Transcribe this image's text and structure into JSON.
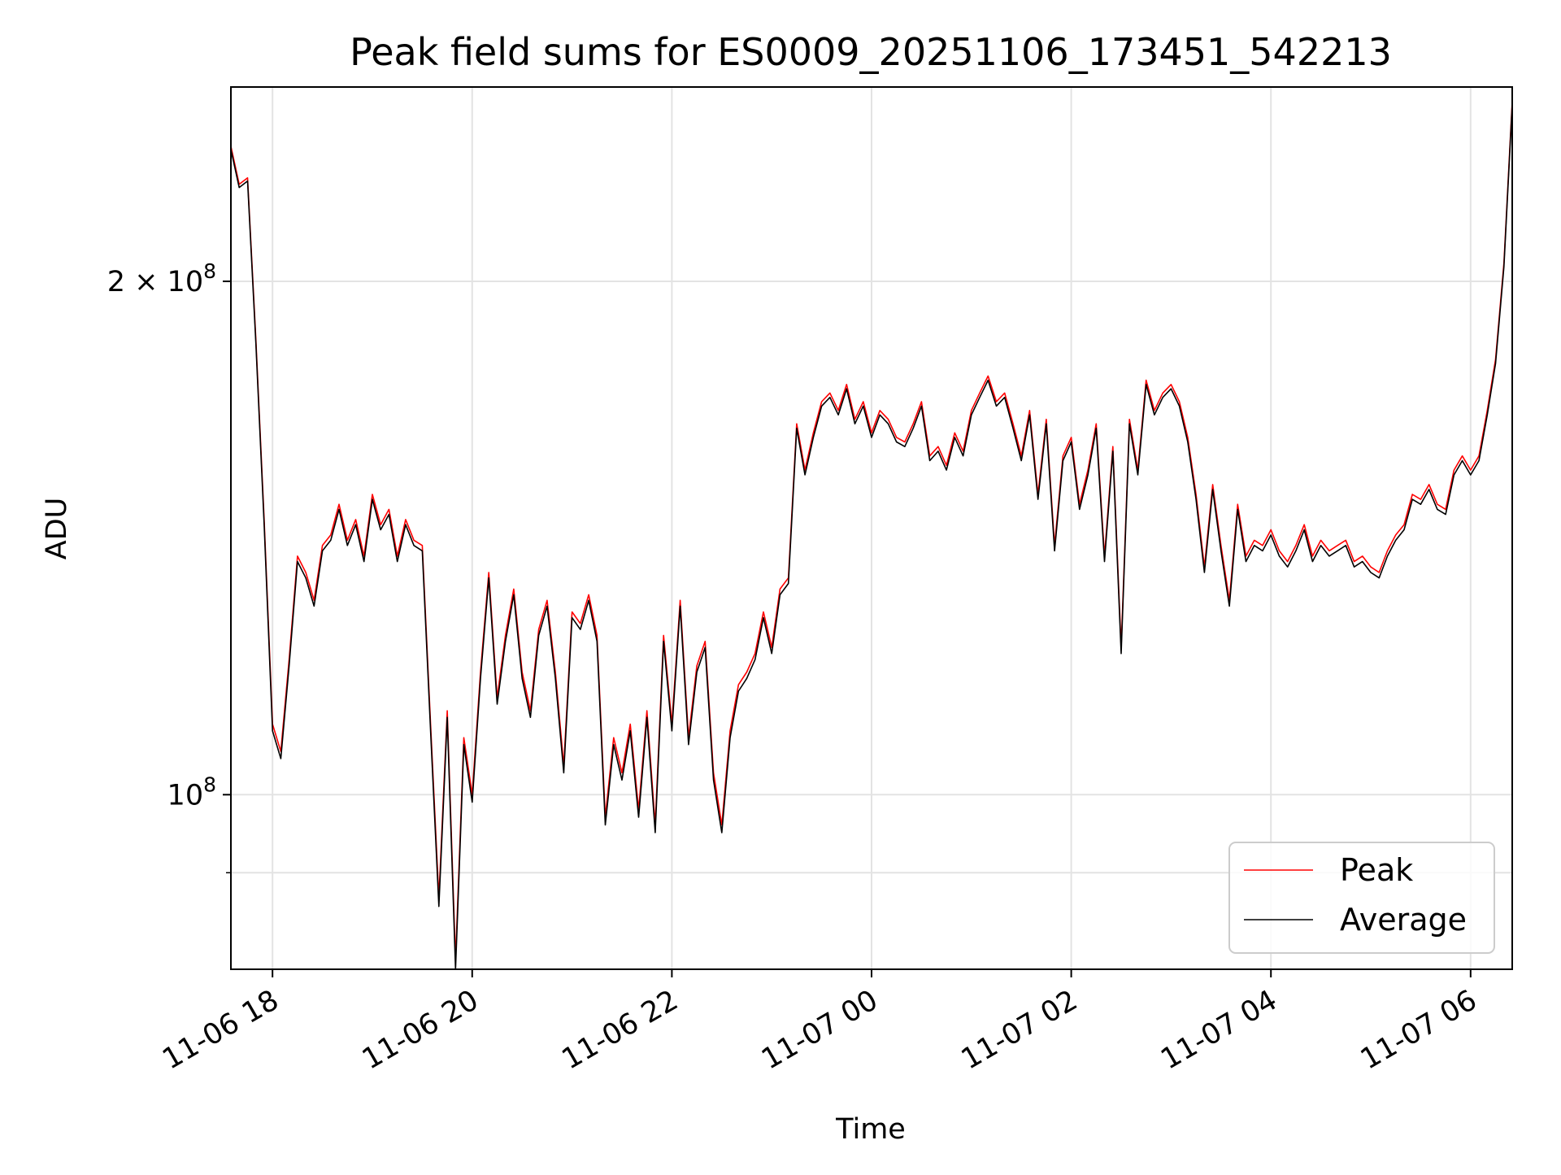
{
  "chart_data": {
    "type": "line",
    "title": "Peak field sums for ES0009_20251106_173451_542213",
    "xlabel": "Time",
    "ylabel": "ADU",
    "x_scale": "time",
    "y_scale": "log",
    "xlim": [
      "2025-11-06T17:35:00",
      "2025-11-07T06:25:00"
    ],
    "ylim": [
      79000000,
      260000000
    ],
    "grid": true,
    "legend": {
      "position": "lower-right",
      "entries": [
        "Peak",
        "Average"
      ]
    },
    "x_ticks": [
      {
        "value": "2025-11-06T18:00:00",
        "label": "11-06 18"
      },
      {
        "value": "2025-11-06T20:00:00",
        "label": "11-06 20"
      },
      {
        "value": "2025-11-06T22:00:00",
        "label": "11-06 22"
      },
      {
        "value": "2025-11-07T00:00:00",
        "label": "11-07 00"
      },
      {
        "value": "2025-11-07T02:00:00",
        "label": "11-07 02"
      },
      {
        "value": "2025-11-07T04:00:00",
        "label": "11-07 04"
      },
      {
        "value": "2025-11-07T06:00:00",
        "label": "11-07 06"
      }
    ],
    "y_major_ticks": [
      {
        "value": 100000000,
        "label_base": "10",
        "label_exp": "8"
      },
      {
        "value": 200000000,
        "label_base": "2 × 10",
        "label_exp": "8"
      }
    ],
    "y_minor_ticks": [
      90000000
    ],
    "colors": {
      "Peak": "#ff0000",
      "Average": "#000000"
    },
    "x": [
      "2025-11-06T17:35:00",
      "2025-11-06T17:40:00",
      "2025-11-06T17:45:00",
      "2025-11-06T17:50:00",
      "2025-11-06T17:55:00",
      "2025-11-06T18:00:00",
      "2025-11-06T18:05:00",
      "2025-11-06T18:10:00",
      "2025-11-06T18:15:00",
      "2025-11-06T18:20:00",
      "2025-11-06T18:25:00",
      "2025-11-06T18:30:00",
      "2025-11-06T18:35:00",
      "2025-11-06T18:40:00",
      "2025-11-06T18:45:00",
      "2025-11-06T18:50:00",
      "2025-11-06T18:55:00",
      "2025-11-06T19:00:00",
      "2025-11-06T19:05:00",
      "2025-11-06T19:10:00",
      "2025-11-06T19:15:00",
      "2025-11-06T19:20:00",
      "2025-11-06T19:25:00",
      "2025-11-06T19:30:00",
      "2025-11-06T19:35:00",
      "2025-11-06T19:40:00",
      "2025-11-06T19:45:00",
      "2025-11-06T19:50:00",
      "2025-11-06T19:55:00",
      "2025-11-06T20:00:00",
      "2025-11-06T20:05:00",
      "2025-11-06T20:10:00",
      "2025-11-06T20:15:00",
      "2025-11-06T20:20:00",
      "2025-11-06T20:25:00",
      "2025-11-06T20:30:00",
      "2025-11-06T20:35:00",
      "2025-11-06T20:40:00",
      "2025-11-06T20:45:00",
      "2025-11-06T20:50:00",
      "2025-11-06T20:55:00",
      "2025-11-06T21:00:00",
      "2025-11-06T21:05:00",
      "2025-11-06T21:10:00",
      "2025-11-06T21:15:00",
      "2025-11-06T21:20:00",
      "2025-11-06T21:25:00",
      "2025-11-06T21:30:00",
      "2025-11-06T21:35:00",
      "2025-11-06T21:40:00",
      "2025-11-06T21:45:00",
      "2025-11-06T21:50:00",
      "2025-11-06T21:55:00",
      "2025-11-06T22:00:00",
      "2025-11-06T22:05:00",
      "2025-11-06T22:10:00",
      "2025-11-06T22:15:00",
      "2025-11-06T22:20:00",
      "2025-11-06T22:25:00",
      "2025-11-06T22:30:00",
      "2025-11-06T22:35:00",
      "2025-11-06T22:40:00",
      "2025-11-06T22:45:00",
      "2025-11-06T22:50:00",
      "2025-11-06T22:55:00",
      "2025-11-06T23:00:00",
      "2025-11-06T23:05:00",
      "2025-11-06T23:10:00",
      "2025-11-06T23:15:00",
      "2025-11-06T23:20:00",
      "2025-11-06T23:25:00",
      "2025-11-06T23:30:00",
      "2025-11-06T23:35:00",
      "2025-11-06T23:40:00",
      "2025-11-06T23:45:00",
      "2025-11-06T23:50:00",
      "2025-11-06T23:55:00",
      "2025-11-07T00:00:00",
      "2025-11-07T00:05:00",
      "2025-11-07T00:10:00",
      "2025-11-07T00:15:00",
      "2025-11-07T00:20:00",
      "2025-11-07T00:25:00",
      "2025-11-07T00:30:00",
      "2025-11-07T00:35:00",
      "2025-11-07T00:40:00",
      "2025-11-07T00:45:00",
      "2025-11-07T00:50:00",
      "2025-11-07T00:55:00",
      "2025-11-07T01:00:00",
      "2025-11-07T01:05:00",
      "2025-11-07T01:10:00",
      "2025-11-07T01:15:00",
      "2025-11-07T01:20:00",
      "2025-11-07T01:25:00",
      "2025-11-07T01:30:00",
      "2025-11-07T01:35:00",
      "2025-11-07T01:40:00",
      "2025-11-07T01:45:00",
      "2025-11-07T01:50:00",
      "2025-11-07T01:55:00",
      "2025-11-07T02:00:00",
      "2025-11-07T02:05:00",
      "2025-11-07T02:10:00",
      "2025-11-07T02:15:00",
      "2025-11-07T02:20:00",
      "2025-11-07T02:25:00",
      "2025-11-07T02:30:00",
      "2025-11-07T02:35:00",
      "2025-11-07T02:40:00",
      "2025-11-07T02:45:00",
      "2025-11-07T02:50:00",
      "2025-11-07T02:55:00",
      "2025-11-07T03:00:00",
      "2025-11-07T03:05:00",
      "2025-11-07T03:10:00",
      "2025-11-07T03:15:00",
      "2025-11-07T03:20:00",
      "2025-11-07T03:25:00",
      "2025-11-07T03:30:00",
      "2025-11-07T03:35:00",
      "2025-11-07T03:40:00",
      "2025-11-07T03:45:00",
      "2025-11-07T03:50:00",
      "2025-11-07T03:55:00",
      "2025-11-07T04:00:00",
      "2025-11-07T04:05:00",
      "2025-11-07T04:10:00",
      "2025-11-07T04:15:00",
      "2025-11-07T04:20:00",
      "2025-11-07T04:25:00",
      "2025-11-07T04:30:00",
      "2025-11-07T04:35:00",
      "2025-11-07T04:40:00",
      "2025-11-07T04:45:00",
      "2025-11-07T04:50:00",
      "2025-11-07T04:55:00",
      "2025-11-07T05:00:00",
      "2025-11-07T05:05:00",
      "2025-11-07T05:10:00",
      "2025-11-07T05:15:00",
      "2025-11-07T05:20:00",
      "2025-11-07T05:25:00",
      "2025-11-07T05:30:00",
      "2025-11-07T05:35:00",
      "2025-11-07T05:40:00",
      "2025-11-07T05:45:00",
      "2025-11-07T05:50:00",
      "2025-11-07T05:55:00",
      "2025-11-07T06:00:00",
      "2025-11-07T06:05:00",
      "2025-11-07T06:10:00",
      "2025-11-07T06:15:00",
      "2025-11-07T06:20:00",
      "2025-11-07T06:25:00"
    ],
    "series": [
      {
        "name": "Peak",
        "values": [
          240000000,
          228000000,
          230000000,
          185000000,
          145000000,
          110000000,
          106000000,
          120000000,
          138000000,
          135000000,
          130000000,
          140000000,
          142000000,
          148000000,
          141000000,
          145000000,
          138000000,
          150000000,
          144000000,
          147000000,
          138000000,
          145000000,
          141000000,
          140000000,
          110000000,
          87000000,
          112000000,
          80000000,
          108000000,
          100000000,
          118000000,
          135000000,
          114000000,
          124000000,
          132000000,
          118000000,
          112000000,
          125000000,
          130000000,
          118000000,
          104000000,
          128000000,
          126000000,
          131000000,
          124000000,
          97000000,
          108000000,
          103000000,
          110000000,
          98000000,
          112000000,
          96000000,
          124000000,
          110000000,
          130000000,
          108000000,
          119000000,
          123000000,
          103000000,
          96000000,
          109000000,
          116000000,
          118000000,
          121000000,
          128000000,
          122000000,
          132000000,
          134000000,
          165000000,
          155000000,
          163000000,
          170000000,
          172000000,
          168000000,
          174000000,
          166000000,
          170000000,
          163000000,
          168000000,
          166000000,
          162000000,
          161000000,
          165000000,
          170000000,
          158000000,
          160000000,
          156000000,
          163000000,
          159000000,
          168000000,
          172000000,
          176000000,
          170000000,
          172000000,
          165000000,
          158000000,
          168000000,
          150000000,
          166000000,
          140000000,
          158000000,
          162000000,
          148000000,
          155000000,
          165000000,
          138000000,
          160000000,
          122000000,
          166000000,
          155000000,
          175000000,
          168000000,
          172000000,
          174000000,
          170000000,
          162000000,
          150000000,
          136000000,
          152000000,
          140000000,
          130000000,
          148000000,
          138000000,
          141000000,
          140000000,
          143000000,
          139000000,
          137000000,
          140000000,
          144000000,
          138000000,
          141000000,
          139000000,
          140000000,
          141000000,
          137000000,
          138000000,
          136000000,
          135000000,
          139000000,
          142000000,
          144000000,
          150000000,
          149000000,
          152000000,
          148000000,
          147000000,
          155000000,
          158000000,
          155000000,
          158000000,
          168000000,
          180000000,
          205000000,
          255000000
        ]
      },
      {
        "name": "Average",
        "values": [
          239000000,
          227000000,
          229000000,
          184000000,
          144000000,
          109000000,
          105000000,
          119000000,
          137000000,
          134000000,
          129000000,
          139000000,
          141000000,
          147000000,
          140000000,
          144000000,
          137000000,
          149000000,
          143000000,
          146000000,
          137000000,
          144000000,
          140000000,
          139000000,
          109000000,
          86000000,
          111000000,
          79000000,
          107000000,
          99000000,
          117000000,
          134000000,
          113000000,
          123000000,
          131000000,
          117000000,
          111000000,
          124000000,
          129000000,
          117000000,
          103000000,
          127000000,
          125000000,
          130000000,
          123000000,
          96000000,
          107000000,
          102000000,
          109000000,
          97000000,
          111000000,
          95000000,
          123000000,
          109000000,
          129000000,
          107000000,
          118000000,
          122000000,
          102000000,
          95000000,
          108000000,
          115000000,
          117000000,
          120000000,
          127000000,
          121000000,
          131000000,
          133000000,
          164000000,
          154000000,
          162000000,
          169000000,
          171000000,
          167000000,
          173000000,
          165000000,
          169000000,
          162000000,
          167000000,
          165000000,
          161000000,
          160000000,
          164000000,
          169000000,
          157000000,
          159000000,
          155000000,
          162000000,
          158000000,
          167000000,
          171000000,
          175000000,
          169000000,
          171000000,
          164000000,
          157000000,
          167000000,
          149000000,
          165000000,
          139000000,
          157000000,
          161000000,
          147000000,
          154000000,
          164000000,
          137000000,
          159000000,
          121000000,
          165000000,
          154000000,
          174000000,
          167000000,
          171000000,
          173000000,
          169000000,
          161000000,
          149000000,
          135000000,
          151000000,
          139000000,
          129000000,
          147000000,
          137000000,
          140000000,
          139000000,
          142000000,
          138000000,
          136000000,
          139000000,
          143000000,
          137000000,
          140000000,
          138000000,
          139000000,
          140000000,
          136000000,
          137000000,
          135000000,
          134000000,
          138000000,
          141000000,
          143000000,
          149000000,
          148000000,
          151000000,
          147000000,
          146000000,
          154000000,
          157000000,
          154000000,
          157000000,
          167000000,
          179000000,
          204000000,
          254000000
        ]
      }
    ]
  }
}
